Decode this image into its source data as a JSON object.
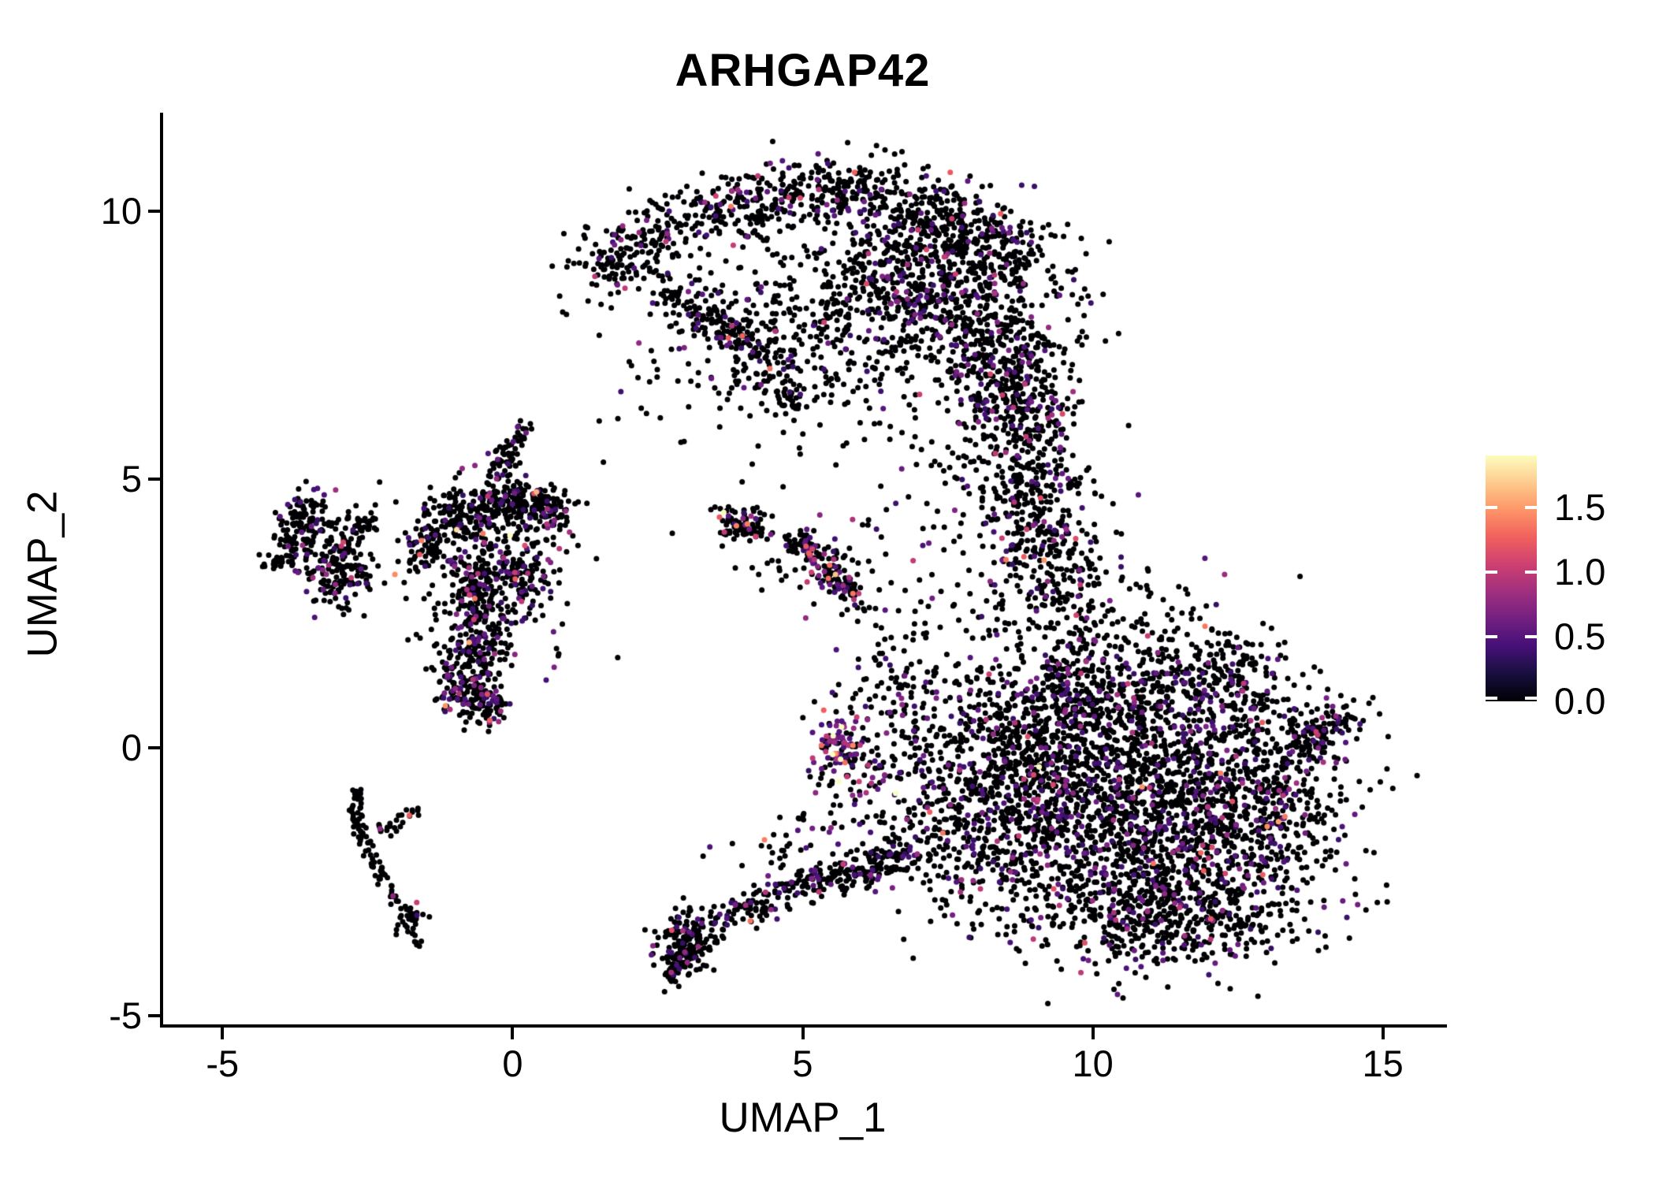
{
  "chart_data": {
    "type": "scatter",
    "title": "ARHGAP42",
    "xlabel": "UMAP_1",
    "ylabel": "UMAP_2",
    "xlim": [
      -6.05,
      16.05
    ],
    "ylim": [
      -5.2,
      11.8
    ],
    "x_ticks": [
      {
        "value": -5,
        "label": "-5"
      },
      {
        "value": 0,
        "label": "0"
      },
      {
        "value": 5,
        "label": "5"
      },
      {
        "value": 10,
        "label": "10"
      },
      {
        "value": 15,
        "label": "15"
      }
    ],
    "y_ticks": [
      {
        "value": 10,
        "label": "10"
      },
      {
        "value": 5,
        "label": "5"
      },
      {
        "value": 0,
        "label": "0"
      },
      {
        "value": -5,
        "label": "-5"
      }
    ],
    "grid": false,
    "background_color": "#ffffff",
    "axis_color": "#000000",
    "text_color": "#000000",
    "point_radius_px": 3.5,
    "colorbar": {
      "position": "right",
      "vmin": 0.0,
      "vmax": 1.9,
      "tick_values": [
        1.5,
        1.0,
        0.5,
        0.0
      ],
      "tick_labels": [
        "1.5",
        "1.0",
        "0.5",
        "0.0"
      ],
      "colormap": "magma",
      "stops": [
        "#000004",
        "#180f3e",
        "#451077",
        "#721f81",
        "#9f2f7f",
        "#cd4071",
        "#f1605d",
        "#fd9567",
        "#feca8d",
        "#fcfdbf"
      ]
    },
    "seed": 42,
    "clusters": [
      {
        "name": "far-left-upper-lobe",
        "t": "b",
        "c": [
          -3.55,
          4.25
        ],
        "s": [
          0.25,
          0.3
        ],
        "n": 90,
        "p": 0.1,
        "m": 0.55
      },
      {
        "name": "far-left-west-lobe",
        "t": "b",
        "c": [
          -3.9,
          3.65
        ],
        "s": [
          0.18,
          0.25
        ],
        "n": 55,
        "p": 0.08,
        "m": 0.55
      },
      {
        "name": "far-left-main",
        "t": "b",
        "c": [
          -3.05,
          3.35
        ],
        "s": [
          0.33,
          0.42
        ],
        "n": 180,
        "p": 0.12,
        "m": 0.55
      },
      {
        "name": "far-left-arm",
        "t": "b",
        "c": [
          -2.62,
          4.15
        ],
        "s": [
          0.16,
          0.13
        ],
        "n": 30,
        "p": 0.08,
        "m": 0.55
      },
      {
        "name": "midleft-top-spike",
        "t": "p",
        "pts": [
          [
            0.15,
            5.95
          ],
          [
            -0.05,
            5.55
          ],
          [
            -0.25,
            5.1
          ]
        ],
        "w": 0.12,
        "n": 55,
        "p": 0.1,
        "m": 0.55
      },
      {
        "name": "midleft-top-band",
        "t": "b",
        "c": [
          -0.15,
          4.55
        ],
        "s": [
          0.4,
          0.3
        ],
        "n": 170,
        "p": 0.14,
        "m": 0.6
      },
      {
        "name": "midleft-top-left",
        "t": "b",
        "c": [
          -0.95,
          4.3
        ],
        "s": [
          0.3,
          0.25
        ],
        "n": 110,
        "p": 0.14,
        "m": 0.6
      },
      {
        "name": "midleft-top-right",
        "t": "b",
        "c": [
          0.55,
          4.45
        ],
        "s": [
          0.3,
          0.25
        ],
        "n": 110,
        "p": 0.14,
        "m": 0.6
      },
      {
        "name": "midleft-west-arm",
        "t": "b",
        "c": [
          -1.5,
          3.7
        ],
        "s": [
          0.25,
          0.2
        ],
        "n": 55,
        "p": 0.12,
        "m": 0.55
      },
      {
        "name": "midleft-center",
        "t": "b",
        "c": [
          -0.55,
          3.0
        ],
        "s": [
          0.4,
          0.4
        ],
        "n": 190,
        "p": 0.15,
        "m": 0.6
      },
      {
        "name": "midleft-center-east",
        "t": "b",
        "c": [
          0.15,
          3.35
        ],
        "s": [
          0.28,
          0.3
        ],
        "n": 90,
        "p": 0.15,
        "m": 0.6
      },
      {
        "name": "midleft-lower-lobe",
        "t": "b",
        "c": [
          -0.75,
          1.35
        ],
        "s": [
          0.28,
          0.42
        ],
        "n": 200,
        "p": 0.24,
        "m": 0.62
      },
      {
        "name": "midleft-lower-mid",
        "t": "b",
        "c": [
          -0.5,
          2.15
        ],
        "s": [
          0.25,
          0.3
        ],
        "n": 80,
        "p": 0.15,
        "m": 0.6
      },
      {
        "name": "midleft-tail",
        "t": "b",
        "c": [
          -0.45,
          0.8
        ],
        "s": [
          0.18,
          0.18
        ],
        "n": 60,
        "p": 0.3,
        "m": 0.65
      },
      {
        "name": "midleft-halo",
        "t": "b",
        "c": [
          -0.4,
          3.1
        ],
        "s": [
          0.9,
          1.1
        ],
        "n": 110,
        "p": 0.12,
        "m": 0.55
      },
      {
        "name": "lowerleft-spine",
        "t": "p",
        "pts": [
          [
            -2.67,
            -0.78
          ],
          [
            -2.7,
            -1.25
          ],
          [
            -2.55,
            -1.8
          ],
          [
            -2.3,
            -2.3
          ],
          [
            -2.0,
            -2.8
          ],
          [
            -1.78,
            -3.2
          ]
        ],
        "w": 0.07,
        "n": 95,
        "p": 0.05,
        "m": 0.6
      },
      {
        "name": "lowerleft-east-arm",
        "t": "p",
        "pts": [
          [
            -2.35,
            -1.62
          ],
          [
            -2.0,
            -1.4
          ],
          [
            -1.68,
            -1.18
          ]
        ],
        "w": 0.07,
        "n": 25,
        "p": 0.12,
        "m": 0.6
      },
      {
        "name": "lowerleft-end-knot",
        "t": "b",
        "c": [
          -1.72,
          -3.25
        ],
        "s": [
          0.12,
          0.12
        ],
        "n": 25,
        "p": 0.02,
        "m": 0.5
      },
      {
        "name": "lowerleft-tip",
        "t": "p",
        "pts": [
          [
            -1.68,
            -3.45
          ],
          [
            -1.6,
            -3.7
          ]
        ],
        "w": 0.05,
        "n": 8,
        "p": 0.0,
        "m": 0.5
      },
      {
        "name": "arc-top-rim",
        "t": "p",
        "pts": [
          [
            1.3,
            8.8
          ],
          [
            2.0,
            9.25
          ],
          [
            2.8,
            9.7
          ],
          [
            3.7,
            10.05
          ],
          [
            4.7,
            10.35
          ],
          [
            5.6,
            10.4
          ],
          [
            6.4,
            10.25
          ],
          [
            7.3,
            9.95
          ],
          [
            8.1,
            9.55
          ],
          [
            8.75,
            9.1
          ]
        ],
        "w": 0.33,
        "n": 820,
        "p": 0.13,
        "m": 0.55
      },
      {
        "name": "arc-upper-right-mass",
        "t": "b",
        "c": [
          7.3,
          8.65
        ],
        "s": [
          1.05,
          0.75
        ],
        "n": 640,
        "p": 0.14,
        "m": 0.55
      },
      {
        "name": "arc-right-lobe",
        "t": "b",
        "c": [
          8.45,
          7.2
        ],
        "s": [
          0.55,
          0.85
        ],
        "n": 380,
        "p": 0.14,
        "m": 0.55
      },
      {
        "name": "arc-interior",
        "t": "b",
        "c": [
          5.2,
          7.7
        ],
        "s": [
          1.05,
          0.85
        ],
        "n": 240,
        "p": 0.12,
        "m": 0.5
      },
      {
        "name": "arc-left-arm",
        "t": "p",
        "pts": [
          [
            2.55,
            8.55
          ],
          [
            3.3,
            8.05
          ],
          [
            4.0,
            7.55
          ],
          [
            4.4,
            7.05
          ]
        ],
        "w": 0.22,
        "n": 190,
        "p": 0.12,
        "m": 0.55
      },
      {
        "name": "arc-dangle",
        "t": "b",
        "c": [
          4.75,
          6.5
        ],
        "s": [
          0.2,
          0.28
        ],
        "n": 40,
        "p": 0.1,
        "m": 0.5
      },
      {
        "name": "arc-scatter",
        "t": "b",
        "c": [
          5.3,
          8.0
        ],
        "s": [
          1.7,
          1.15
        ],
        "n": 150,
        "p": 0.1,
        "m": 0.5
      },
      {
        "name": "neck-upper",
        "t": "b",
        "c": [
          9.0,
          5.6
        ],
        "s": [
          0.4,
          0.85
        ],
        "n": 200,
        "p": 0.12,
        "m": 0.5
      },
      {
        "name": "neck-scatter",
        "t": "b",
        "c": [
          8.3,
          4.9
        ],
        "s": [
          0.75,
          0.85
        ],
        "n": 150,
        "p": 0.12,
        "m": 0.5
      },
      {
        "name": "neck-lower",
        "t": "b",
        "c": [
          9.3,
          3.4
        ],
        "s": [
          0.6,
          0.8
        ],
        "n": 280,
        "p": 0.14,
        "m": 0.55
      },
      {
        "name": "right-upper-core",
        "t": "b",
        "c": [
          10.2,
          0.8
        ],
        "s": [
          1.25,
          0.95
        ],
        "n": 900,
        "p": 0.16,
        "m": 0.55
      },
      {
        "name": "right-core",
        "t": "b",
        "c": [
          10.9,
          -1.5
        ],
        "s": [
          1.45,
          1.05
        ],
        "n": 1350,
        "p": 0.16,
        "m": 0.55
      },
      {
        "name": "right-west-lobe",
        "t": "b",
        "c": [
          8.7,
          -0.5
        ],
        "s": [
          0.75,
          1.0
        ],
        "n": 480,
        "p": 0.16,
        "m": 0.55
      },
      {
        "name": "right-bottom-band",
        "t": "b",
        "c": [
          11.4,
          -3.15
        ],
        "s": [
          1.25,
          0.5
        ],
        "n": 430,
        "p": 0.15,
        "m": 0.55
      },
      {
        "name": "right-east-lobe",
        "t": "b",
        "c": [
          12.9,
          -0.8
        ],
        "s": [
          0.8,
          0.9
        ],
        "n": 430,
        "p": 0.15,
        "m": 0.55
      },
      {
        "name": "right-east-tail",
        "t": "p",
        "pts": [
          [
            13.6,
            0.0
          ],
          [
            14.05,
            0.3
          ],
          [
            14.4,
            0.5
          ]
        ],
        "w": 0.22,
        "n": 110,
        "p": 0.15,
        "m": 0.6
      },
      {
        "name": "right-top-bump",
        "t": "b",
        "c": [
          12.4,
          1.3
        ],
        "s": [
          0.5,
          0.45
        ],
        "n": 140,
        "p": 0.15,
        "m": 0.55
      },
      {
        "name": "right-west-bridge",
        "t": "b",
        "c": [
          7.6,
          -1.6
        ],
        "s": [
          0.5,
          0.85
        ],
        "n": 140,
        "p": 0.14,
        "m": 0.5
      },
      {
        "name": "mid-cross-arm1",
        "t": "p",
        "pts": [
          [
            3.5,
            4.5
          ],
          [
            3.95,
            4.15
          ],
          [
            4.45,
            3.85
          ]
        ],
        "w": 0.09,
        "n": 45,
        "p": 0.15,
        "m": 0.7
      },
      {
        "name": "mid-cross-arm2",
        "t": "p",
        "pts": [
          [
            3.6,
            3.9
          ],
          [
            3.95,
            4.2
          ],
          [
            4.35,
            4.5
          ]
        ],
        "w": 0.09,
        "n": 40,
        "p": 0.15,
        "m": 0.7
      },
      {
        "name": "mid-streak",
        "t": "p",
        "pts": [
          [
            4.9,
            3.9
          ],
          [
            5.35,
            3.45
          ],
          [
            5.75,
            3.0
          ],
          [
            5.98,
            2.68
          ]
        ],
        "w": 0.13,
        "n": 150,
        "p": 0.3,
        "m": 0.62
      },
      {
        "name": "mid-halo",
        "t": "b",
        "c": [
          5.3,
          3.5
        ],
        "s": [
          0.55,
          0.5
        ],
        "n": 60,
        "p": 0.18,
        "m": 0.6
      },
      {
        "name": "bright-blob",
        "t": "b",
        "c": [
          5.62,
          0.05
        ],
        "s": [
          0.2,
          0.26
        ],
        "n": 85,
        "p": 0.62,
        "m": 0.95
      },
      {
        "name": "bright-blob-halo",
        "t": "b",
        "c": [
          5.85,
          -0.35
        ],
        "s": [
          0.4,
          0.5
        ],
        "n": 60,
        "p": 0.45,
        "m": 0.85
      },
      {
        "name": "mid-sparse-upper",
        "t": "b",
        "c": [
          6.4,
          1.3
        ],
        "s": [
          0.5,
          0.95
        ],
        "n": 80,
        "p": 0.2,
        "m": 0.6
      },
      {
        "name": "bottomarc-hook",
        "t": "b",
        "c": [
          2.98,
          -3.62
        ],
        "s": [
          0.26,
          0.3
        ],
        "n": 150,
        "p": 0.12,
        "m": 0.55
      },
      {
        "name": "bottomarc-tip",
        "t": "p",
        "pts": [
          [
            2.72,
            -4.35
          ],
          [
            2.82,
            -4.05
          ],
          [
            3.0,
            -3.8
          ]
        ],
        "w": 0.09,
        "n": 55,
        "p": 0.1,
        "m": 0.5
      },
      {
        "name": "bottomarc-chain",
        "t": "p",
        "pts": [
          [
            3.3,
            -3.3
          ],
          [
            3.95,
            -3.0
          ],
          [
            4.6,
            -2.75
          ],
          [
            5.25,
            -2.5
          ],
          [
            5.9,
            -2.3
          ],
          [
            6.55,
            -2.05
          ],
          [
            7.1,
            -1.9
          ]
        ],
        "w": 0.17,
        "n": 300,
        "p": 0.18,
        "m": 0.55
      },
      {
        "name": "bottomarc-halo",
        "t": "b",
        "c": [
          5.3,
          -1.7
        ],
        "s": [
          0.9,
          0.45
        ],
        "n": 70,
        "p": 0.15,
        "m": 0.5
      },
      {
        "name": "bridge-mid-right",
        "t": "b",
        "c": [
          7.1,
          0.6
        ],
        "s": [
          0.55,
          1.1
        ],
        "n": 90,
        "p": 0.15,
        "m": 0.55
      },
      {
        "name": "stray-left-of-arc",
        "t": "b",
        "c": [
          2.1,
          6.9
        ],
        "s": [
          0.5,
          0.6
        ],
        "n": 12,
        "p": 0.08,
        "m": 0.5
      }
    ]
  }
}
